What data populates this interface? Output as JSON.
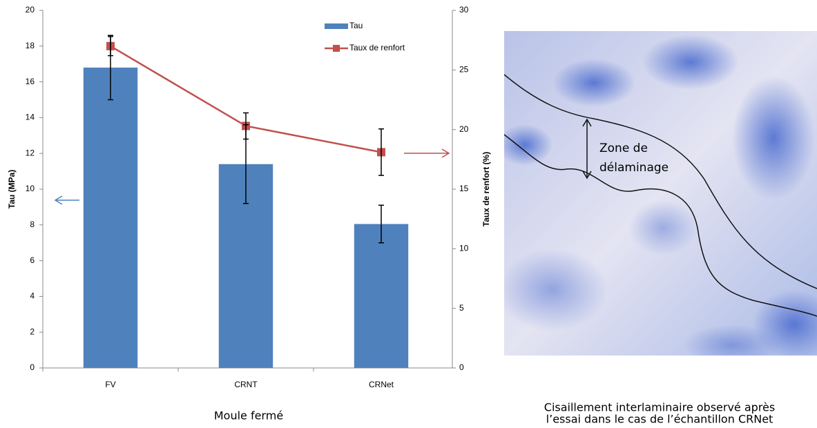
{
  "chart_data": {
    "type": "bar_line",
    "x_label": "Moule fermé",
    "y_label": "Tau (MPa)",
    "y2_label": "Taux de renfort (%)",
    "categories": [
      "FV",
      "CRNT",
      "CRNet"
    ],
    "series": [
      {
        "name": "Tau",
        "type": "bar",
        "color": "#4f81bd",
        "values": [
          16.8,
          11.4,
          8.05
        ],
        "errors": [
          1.8,
          2.2,
          1.05
        ]
      },
      {
        "name": "Taux de renfort",
        "type": "line",
        "axis": "y2",
        "color": "#c0504d",
        "values": [
          27,
          20.3,
          18.1
        ],
        "errors": [
          0.8,
          1.1,
          1.95
        ]
      }
    ],
    "ylim": [
      0,
      20
    ],
    "yticks": [
      0,
      2,
      4,
      6,
      8,
      10,
      12,
      14,
      16,
      18,
      20
    ],
    "y2lim": [
      0,
      30
    ],
    "y2ticks": [
      0,
      5,
      10,
      15,
      20,
      25,
      30
    ],
    "grid": false,
    "legend": "top-right"
  },
  "photo": {
    "label": [
      "Zone de",
      "délaminage"
    ],
    "caption": [
      "Cisaillement interlaminaire observé après",
      "l’essai dans le cas de l’échantillon CRNet"
    ]
  }
}
